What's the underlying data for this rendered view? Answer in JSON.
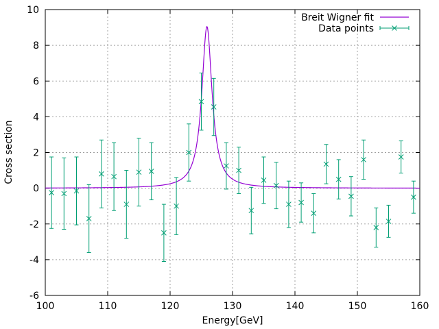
{
  "chart_data": {
    "type": "scatter",
    "xlabel": "Energy[GeV]",
    "ylabel": "Cross section",
    "xlim": [
      100,
      160
    ],
    "ylim": [
      -6,
      10
    ],
    "xticks": [
      100,
      110,
      120,
      130,
      140,
      150,
      160
    ],
    "yticks": [
      -6,
      -4,
      -2,
      0,
      2,
      4,
      6,
      8,
      10
    ],
    "xtick_labels": [
      "100",
      "110",
      "120",
      "130",
      "140",
      "150",
      "160"
    ],
    "ytick_labels": [
      "-6",
      "-4",
      "-2",
      "0",
      "2",
      "4",
      "6",
      "8",
      "10"
    ],
    "grid": true,
    "legend_position": "top-right",
    "fit": {
      "name": "Breit Wigner fit",
      "color": "#9400d3",
      "peak_x": 125.9,
      "peak_y": 9.05,
      "width": 1.0
    },
    "data": {
      "name": "Data points",
      "color": "#009e73",
      "points": [
        {
          "x": 101,
          "y": -0.25,
          "err": 2.0
        },
        {
          "x": 103,
          "y": -0.3,
          "err": 2.0
        },
        {
          "x": 105,
          "y": -0.15,
          "err": 1.9
        },
        {
          "x": 107,
          "y": -1.7,
          "err": 1.9
        },
        {
          "x": 109,
          "y": 0.8,
          "err": 1.9
        },
        {
          "x": 111,
          "y": 0.65,
          "err": 1.9
        },
        {
          "x": 113,
          "y": -0.9,
          "err": 1.9
        },
        {
          "x": 115,
          "y": 0.9,
          "err": 1.9
        },
        {
          "x": 117,
          "y": 0.95,
          "err": 1.6
        },
        {
          "x": 119,
          "y": -2.5,
          "err": 1.6
        },
        {
          "x": 121,
          "y": -1.0,
          "err": 1.6
        },
        {
          "x": 123,
          "y": 2.0,
          "err": 1.6
        },
        {
          "x": 125,
          "y": 4.85,
          "err": 1.6
        },
        {
          "x": 127,
          "y": 4.55,
          "err": 1.6
        },
        {
          "x": 129,
          "y": 1.25,
          "err": 1.3
        },
        {
          "x": 131,
          "y": 1.0,
          "err": 1.3
        },
        {
          "x": 133,
          "y": -1.25,
          "err": 1.3
        },
        {
          "x": 135,
          "y": 0.45,
          "err": 1.3
        },
        {
          "x": 137,
          "y": 0.15,
          "err": 1.3
        },
        {
          "x": 139,
          "y": -0.9,
          "err": 1.3
        },
        {
          "x": 141,
          "y": -0.8,
          "err": 1.1
        },
        {
          "x": 143,
          "y": -1.4,
          "err": 1.1
        },
        {
          "x": 145,
          "y": 1.35,
          "err": 1.1
        },
        {
          "x": 147,
          "y": 0.5,
          "err": 1.1
        },
        {
          "x": 149,
          "y": -0.45,
          "err": 1.1
        },
        {
          "x": 151,
          "y": 1.6,
          "err": 1.1
        },
        {
          "x": 153,
          "y": -2.2,
          "err": 1.1
        },
        {
          "x": 155,
          "y": -1.85,
          "err": 0.9
        },
        {
          "x": 157,
          "y": 1.75,
          "err": 0.9
        },
        {
          "x": 159,
          "y": -0.5,
          "err": 0.9
        }
      ]
    }
  }
}
